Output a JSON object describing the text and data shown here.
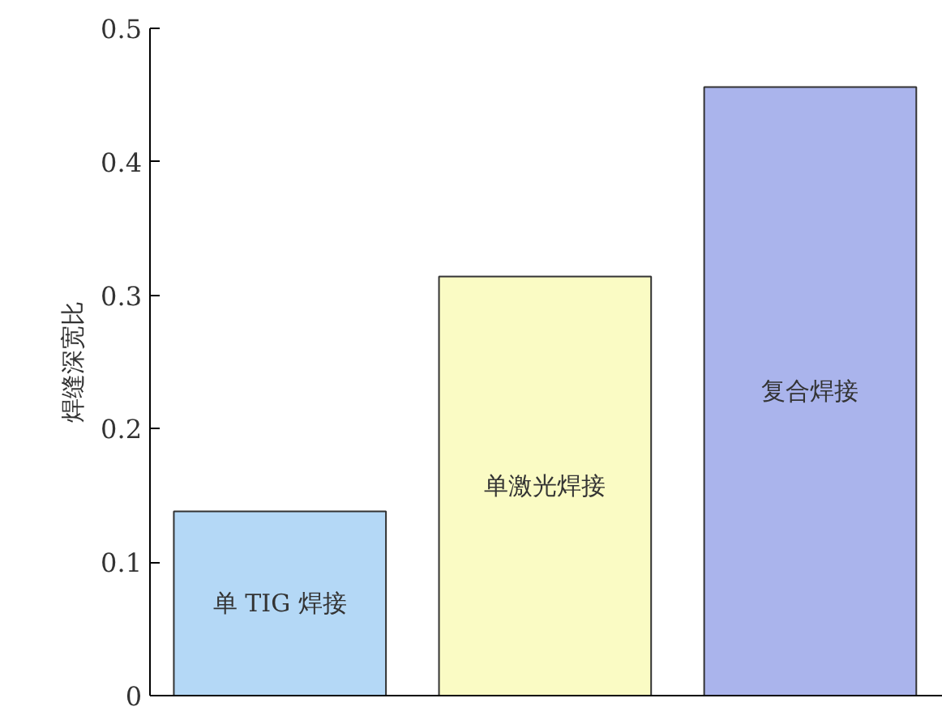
{
  "chart_data": {
    "type": "bar",
    "ylabel": "焊缝深宽比",
    "categories": [
      "单 TIG 焊接",
      "单激光焊接",
      "复合焊接"
    ],
    "values": [
      0.138,
      0.314,
      0.456
    ],
    "colors": [
      "#b4d8f6",
      "#fafbc4",
      "#aab4ec"
    ],
    "ylim": [
      0,
      0.5
    ],
    "yticks": [
      0,
      0.1,
      0.2,
      0.3,
      0.4,
      0.5
    ],
    "grid": false,
    "tick_labels": "y"
  }
}
